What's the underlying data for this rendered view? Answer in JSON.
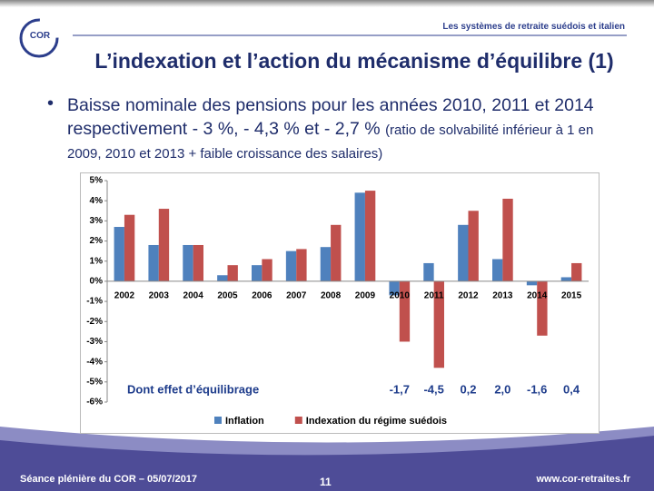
{
  "logo": "COR",
  "header": "Les systèmes de retraite suédois et italien",
  "title": "L’indexation et l’action du mécanisme d’équilibre (1)",
  "bullet": {
    "main": "Baisse nominale des pensions pour les années 2010, 2011 et 2014 respectivement - 3 %, - 4,3 % et - 2,7 %",
    "note": "(ratio de solvabilité inférieur à 1 en 2009, 2010 et 2013 + faible croissance des salaires)"
  },
  "chart_data": {
    "type": "bar",
    "categories": [
      "2002",
      "2003",
      "2004",
      "2005",
      "2006",
      "2007",
      "2008",
      "2009",
      "2010",
      "2011",
      "2012",
      "2013",
      "2014",
      "2015"
    ],
    "series": [
      {
        "name": "Inflation",
        "color": "#4f81bd",
        "values": [
          2.7,
          1.8,
          1.8,
          0.3,
          0.8,
          1.5,
          1.7,
          4.4,
          -0.7,
          0.9,
          2.8,
          1.1,
          -0.2,
          0.2
        ]
      },
      {
        "name": "Indexation du régime suédois",
        "color": "#c0504d",
        "values": [
          3.3,
          3.6,
          1.8,
          0.8,
          1.1,
          1.6,
          2.8,
          4.5,
          -3.0,
          -4.3,
          3.5,
          4.1,
          -2.7,
          0.9
        ]
      }
    ],
    "ylim": [
      -6,
      5
    ],
    "yticks": [
      {
        "value": 5,
        "label": "5%"
      },
      {
        "value": 4,
        "label": "4%"
      },
      {
        "value": 3,
        "label": "3%"
      },
      {
        "value": 2,
        "label": "2%"
      },
      {
        "value": 1,
        "label": "1%"
      },
      {
        "value": 0,
        "label": "0%"
      },
      {
        "value": -1,
        "label": "-1%"
      },
      {
        "value": -2,
        "label": "-2%"
      },
      {
        "value": -3,
        "label": "-3%"
      },
      {
        "value": -4,
        "label": "-4%"
      },
      {
        "value": -5,
        "label": "-5%"
      },
      {
        "value": -6,
        "label": "-6%"
      }
    ],
    "grid": false,
    "legend": "bottom",
    "annotation": {
      "label": "Dont effet d’équilibrage",
      "values": [
        -1.7,
        -4.5,
        0.2,
        2.0,
        -1.6,
        0.4
      ],
      "value_labels": [
        "-1,7",
        "-4,5",
        "0,2",
        "2,0",
        "-1,6",
        "0,4"
      ]
    }
  },
  "footer": {
    "left": "Séance plénière du COR – 05/07/2017",
    "page": "11",
    "right": "www.cor-retraites.fr"
  }
}
